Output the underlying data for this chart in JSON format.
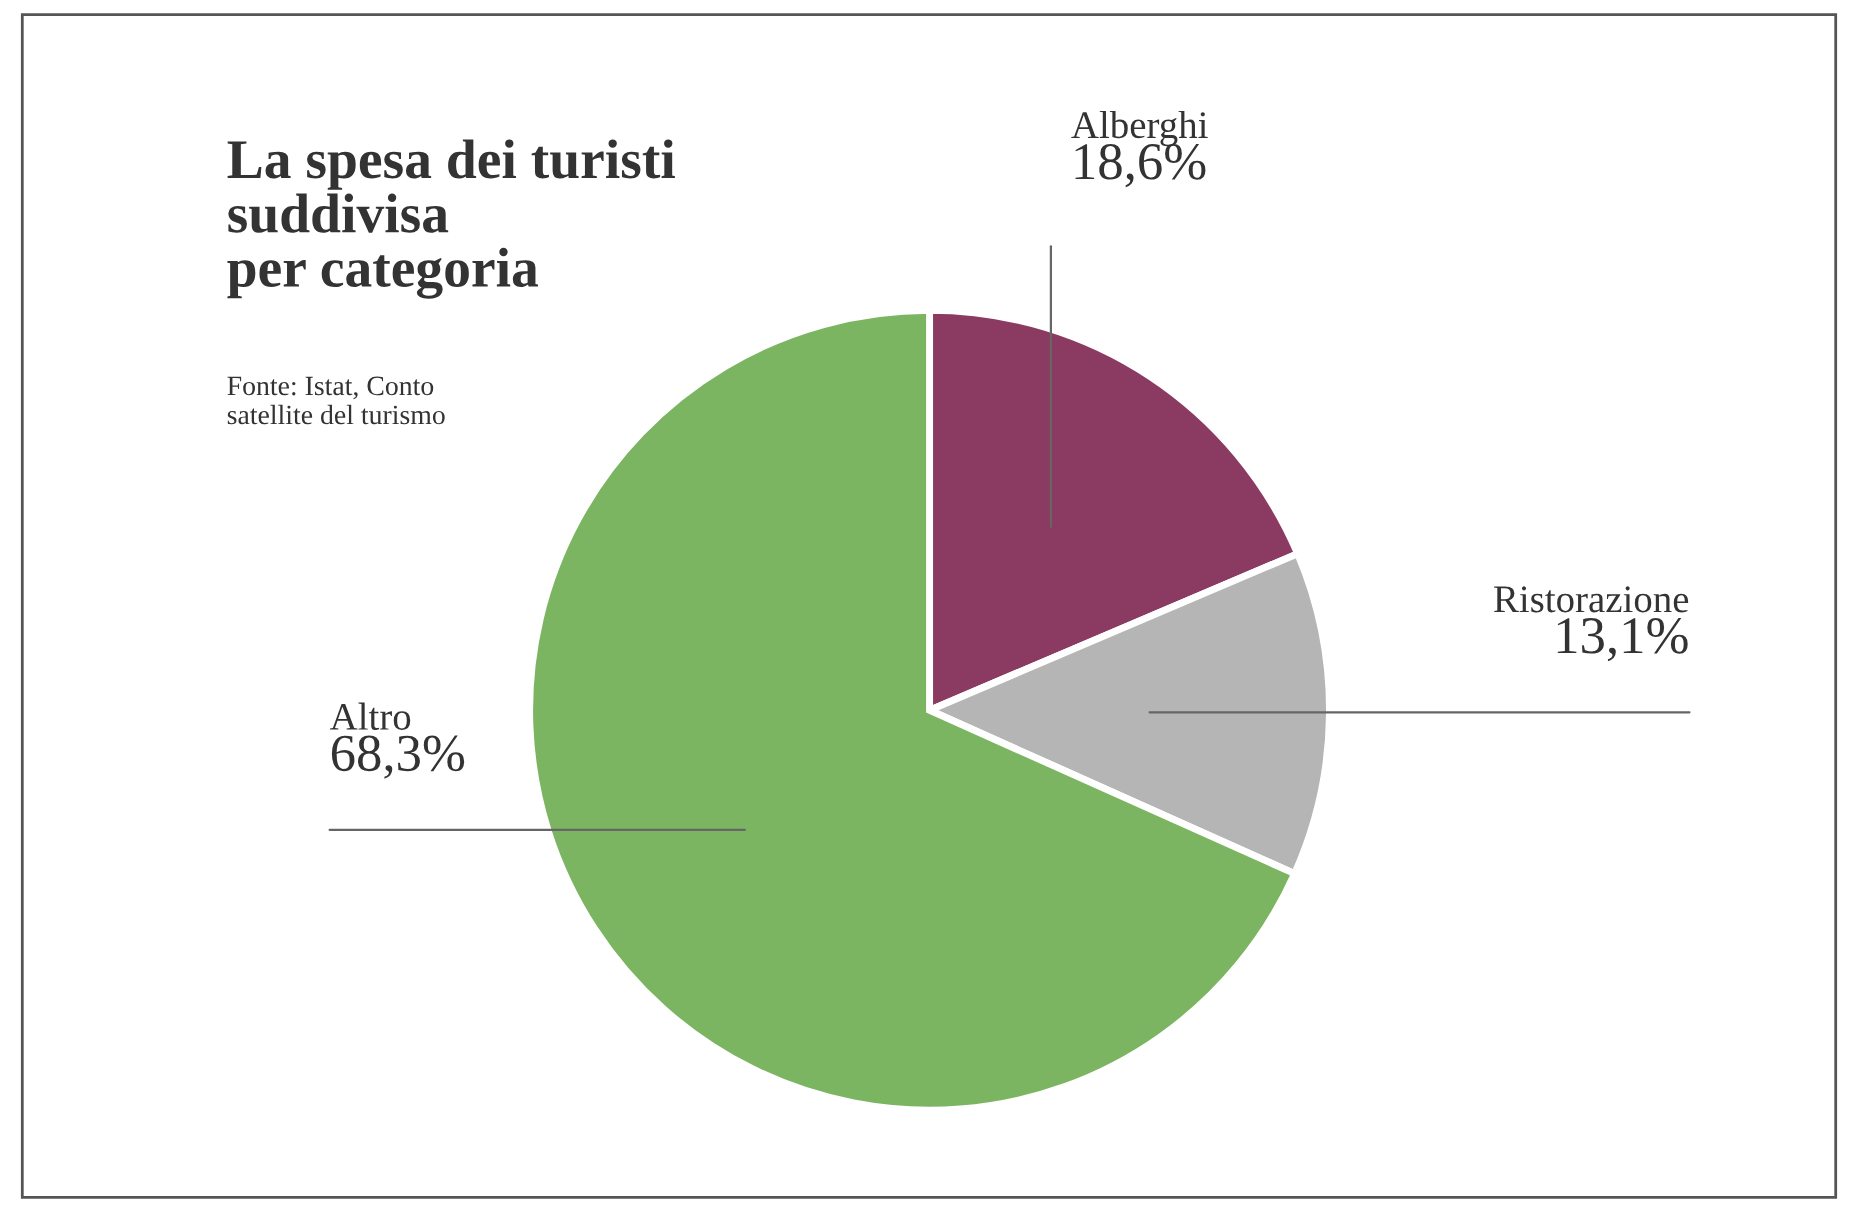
{
  "chart_data": {
    "type": "pie",
    "title": "La spesa dei turisti\nsuddivisa\nper categoria",
    "annotations": [
      "Fonte: Istat, Conto\nsatellite del turismo"
    ],
    "categories": [
      "Alberghi",
      "Ristorazione",
      "Altro"
    ],
    "values": [
      18.6,
      13.1,
      68.3
    ],
    "colors": [
      "#8b3a62",
      "#b5b5b5",
      "#7cb561"
    ],
    "value_labels": [
      "18,6%",
      "13,1%",
      "68,3%"
    ]
  }
}
